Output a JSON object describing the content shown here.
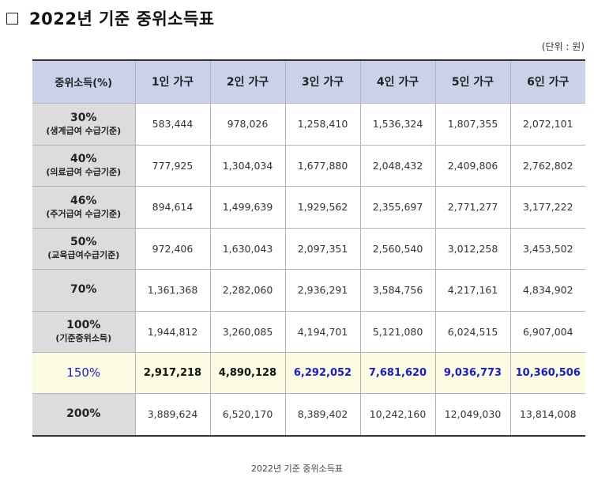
{
  "title": "2022년 기준 중위소득표",
  "unit": "(단위 : 원)",
  "headers": [
    "중위소득(%)",
    "1인 가구",
    "2인 가구",
    "3인 가구",
    "4인 가구",
    "5인 가구",
    "6인 가구"
  ],
  "rows": [
    {
      "pct": "30%",
      "desc": "(생계급여 수급기준)",
      "values": [
        "583,444",
        "978,026",
        "1,258,410",
        "1,536,324",
        "1,807,355",
        "2,072,101"
      ]
    },
    {
      "pct": "40%",
      "desc": "(의료급여 수급기준)",
      "values": [
        "777,925",
        "1,304,034",
        "1,677,880",
        "2,048,432",
        "2,409,806",
        "2,762,802"
      ]
    },
    {
      "pct": "46%",
      "desc": "(주거급여 수급기준)",
      "values": [
        "894,614",
        "1,499,639",
        "1,929,562",
        "2,355,697",
        "2,771,277",
        "3,177,222"
      ]
    },
    {
      "pct": "50%",
      "desc": "(교육급여수급기준)",
      "values": [
        "972,406",
        "1,630,043",
        "2,097,351",
        "2,560,540",
        "3,012,258",
        "3,453,502"
      ]
    },
    {
      "pct": "70%",
      "desc": "",
      "values": [
        "1,361,368",
        "2,282,060",
        "2,936,291",
        "3,584,756",
        "4,217,161",
        "4,834,902"
      ]
    },
    {
      "pct": "100%",
      "desc": "(기준중위소득)",
      "values": [
        "1,944,812",
        "3,260,085",
        "4,194,701",
        "5,121,080",
        "6,024,515",
        "6,907,004"
      ]
    },
    {
      "pct": "150%",
      "desc": "",
      "values": [
        "2,917,218",
        "4,890,128",
        "6,292,052",
        "7,681,620",
        "9,036,773",
        "10,360,506"
      ]
    },
    {
      "pct": "200%",
      "desc": "",
      "values": [
        "3,889,624",
        "6,520,170",
        "8,389,402",
        "10,242,160",
        "12,049,030",
        "13,814,008"
      ]
    }
  ],
  "highlight_color": "#1a1adb",
  "caption": "2022년 기준 중위소득표"
}
